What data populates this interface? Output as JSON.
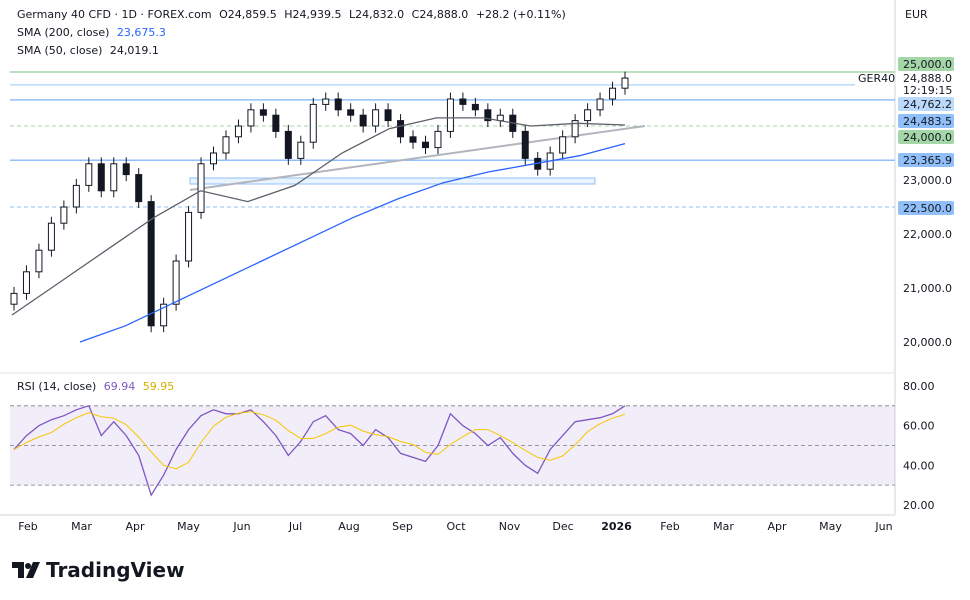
{
  "header": {
    "symbol": "Germany 40 CFD · 1D · FOREX.com",
    "open": "O24,859.5",
    "high": "H24,939.5",
    "low": "L24,832.0",
    "close": "C24,888.0",
    "change": "+28.2 (+0.11%)",
    "sma200_label": "SMA (200, close)",
    "sma200_value": "23,675.3",
    "sma50_label": "SMA (50, close)",
    "sma50_value": "24,019.1"
  },
  "currency": "EUR",
  "brand": "TradingView",
  "price_tag": {
    "symbol": "GER40",
    "price": "24,888.0",
    "countdown": "12:19:15"
  },
  "colors": {
    "up": "#089981",
    "down": "#f23645",
    "candle": "#131722",
    "sma200": "#2962ff",
    "sma50": "#5d606b",
    "rsi": "#7e57c2",
    "rsi_ma": "#f7c600",
    "green": "#a5d6a7",
    "blue": "#90bff9",
    "lightblue": "#bbd9fb"
  },
  "chart_data": {
    "type": "candlestick",
    "price_axis": {
      "ylim": [
        19700,
        25300
      ],
      "ticks": [
        "20,000.0",
        "21,000.0",
        "22,000.0",
        "23,000.0"
      ],
      "tick_values": [
        20000,
        21000,
        22000,
        23000
      ]
    },
    "levels": [
      {
        "value": 25000,
        "label": "25,000.0",
        "style": "solid",
        "color": "green"
      },
      {
        "value": 24762.2,
        "label": "24,762.2",
        "style": "solid",
        "color": "lightblue"
      },
      {
        "value": 24483.5,
        "label": "24,483.5",
        "style": "solid",
        "color": "blue"
      },
      {
        "value": 24000,
        "label": "24,000.0",
        "style": "dashed",
        "color": "green"
      },
      {
        "value": 23365.9,
        "label": "23,365.9",
        "style": "solid",
        "color": "blue"
      },
      {
        "value": 22500,
        "label": "22,500.0",
        "style": "dashed",
        "color": "blue"
      }
    ],
    "x_ticks": [
      "Feb",
      "Mar",
      "Apr",
      "May",
      "Jun",
      "Jul",
      "Aug",
      "Sep",
      "Oct",
      "Nov",
      "Dec",
      "2026",
      "Feb",
      "Mar",
      "Apr",
      "May",
      "Jun"
    ],
    "closes": [
      20900,
      21300,
      21700,
      22200,
      22500,
      22900,
      23300,
      22800,
      23300,
      23100,
      22600,
      20300,
      20700,
      21500,
      22400,
      23300,
      23500,
      23800,
      24000,
      24300,
      24200,
      23900,
      23400,
      23700,
      24400,
      24500,
      24300,
      24200,
      24000,
      24300,
      24100,
      23800,
      23700,
      23600,
      23900,
      24500,
      24400,
      24300,
      24100,
      24200,
      23900,
      23400,
      23200,
      23500,
      23800,
      24100,
      24300,
      24500,
      24700,
      24888
    ],
    "sma200": [
      20000,
      20300,
      20700,
      21100,
      21500,
      21900,
      22300,
      22650,
      22950,
      23150,
      23300,
      23450,
      23675
    ],
    "sma50": [
      20500,
      21100,
      21700,
      22300,
      22800,
      22600,
      22900,
      23500,
      23950,
      24150,
      24150,
      24000,
      24050,
      24019
    ],
    "rsi": {
      "label": "RSI (14, close)",
      "value": "69.94",
      "ma_value": "59.95",
      "ticks": [
        "80.00",
        "60.00",
        "40.00",
        "20.00"
      ],
      "tick_values": [
        80,
        60,
        40,
        20
      ],
      "bands": [
        70,
        50,
        30
      ],
      "values": [
        48,
        55,
        60,
        63,
        65,
        68,
        70,
        55,
        62,
        55,
        45,
        25,
        35,
        48,
        58,
        65,
        68,
        66,
        66,
        68,
        62,
        55,
        45,
        52,
        62,
        65,
        58,
        56,
        50,
        58,
        54,
        46,
        44,
        42,
        50,
        66,
        60,
        56,
        50,
        54,
        46,
        40,
        36,
        48,
        55,
        62,
        63,
        64,
        66,
        70
      ]
    }
  }
}
